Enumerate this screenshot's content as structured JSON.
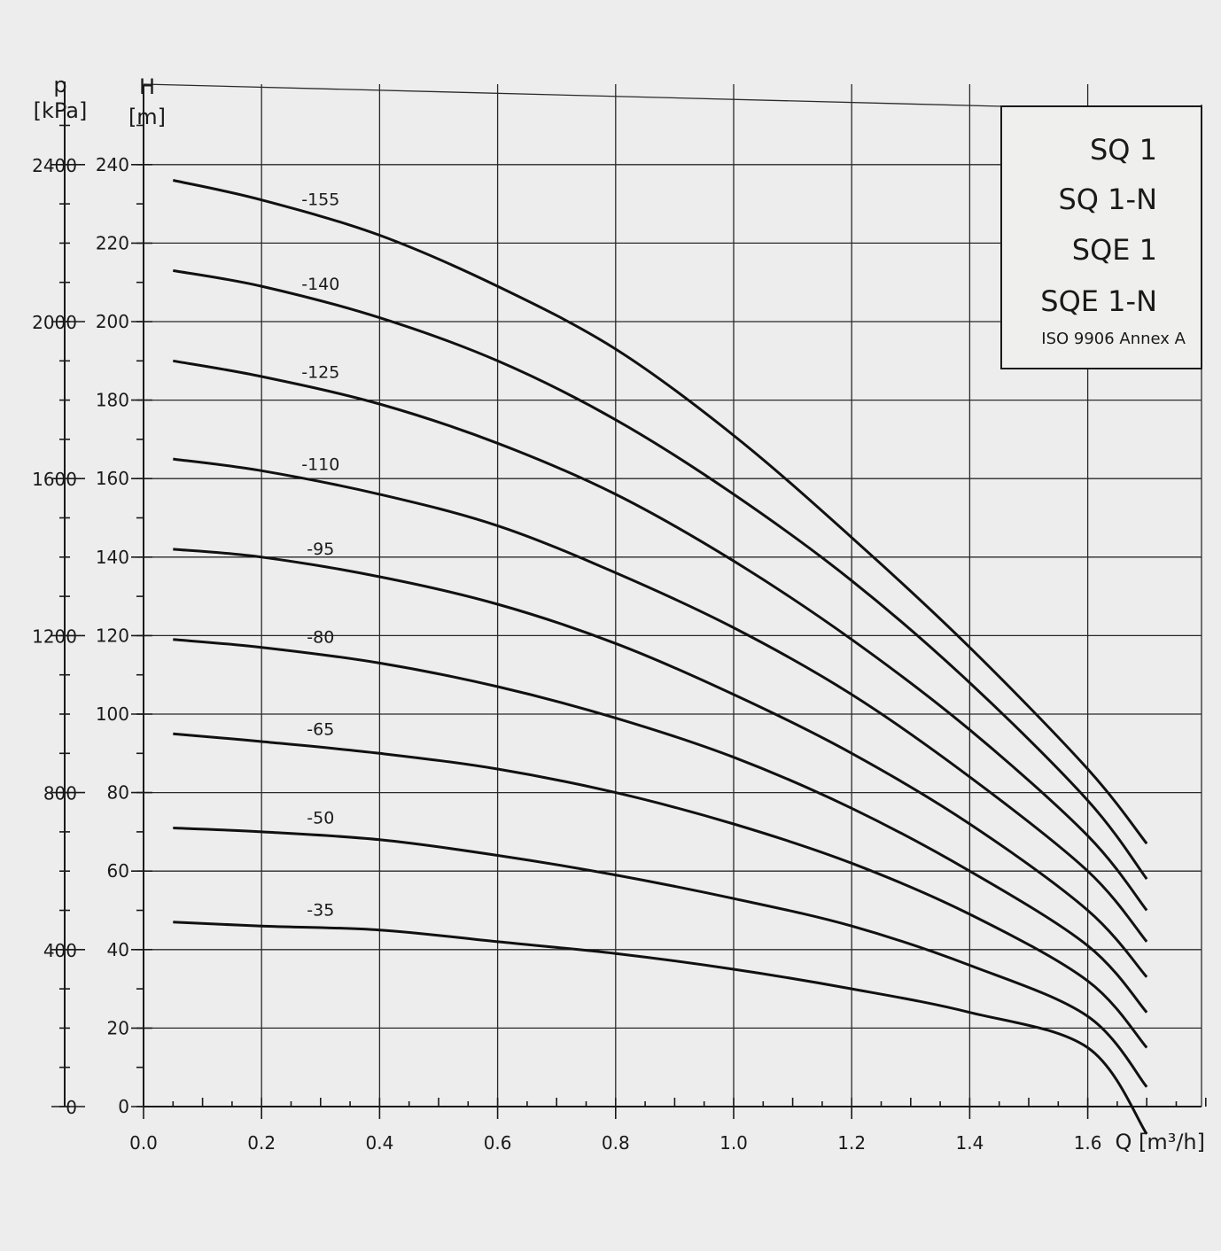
{
  "chart_data": {
    "type": "line",
    "x_axis": {
      "label": "Q [m³/h]",
      "min": 0.0,
      "max": 1.8,
      "tick_values": [
        0.0,
        0.2,
        0.4,
        0.6,
        0.8,
        1.0,
        1.2,
        1.4,
        1.6
      ],
      "tick_labels": [
        "0.0",
        "0.2",
        "0.4",
        "0.6",
        "0.8",
        "1.0",
        "1.2",
        "1.4",
        "1.6"
      ]
    },
    "y_axis_left": {
      "name": "H",
      "unit": "[m]",
      "min": 0,
      "max": 240,
      "tick_values": [
        0,
        20,
        40,
        60,
        80,
        100,
        120,
        140,
        160,
        180,
        200,
        220,
        240
      ],
      "tick_labels": [
        "0",
        "20",
        "40",
        "60",
        "80",
        "100",
        "120",
        "140",
        "160",
        "180",
        "200",
        "220",
        "240"
      ]
    },
    "y_axis_pressure": {
      "name": "p",
      "unit": "[kPa]",
      "min": 0,
      "max": 2400,
      "tick_values": [
        0,
        400,
        800,
        1200,
        1600,
        2000,
        2400
      ],
      "tick_labels": [
        "0",
        "400",
        "800",
        "1200",
        "1600",
        "2000",
        "2400"
      ]
    },
    "grid": true,
    "legend": {
      "lines": [
        "SQ 1",
        "SQ 1-N",
        "SQE 1",
        "SQE 1-N"
      ],
      "standard": "ISO 9906 Annex A",
      "placement": "top-right"
    },
    "series": [
      {
        "name": "-155",
        "x": [
          0.05,
          0.2,
          0.4,
          0.6,
          0.8,
          1.0,
          1.2,
          1.4,
          1.6,
          1.7
        ],
        "y": [
          236,
          231,
          222,
          209,
          193,
          171,
          145,
          117,
          86,
          67
        ]
      },
      {
        "name": "-140",
        "x": [
          0.05,
          0.2,
          0.4,
          0.6,
          0.8,
          1.0,
          1.2,
          1.4,
          1.6,
          1.7
        ],
        "y": [
          213,
          209,
          201,
          190,
          175,
          156,
          134,
          108,
          78,
          58
        ]
      },
      {
        "name": "-125",
        "x": [
          0.05,
          0.2,
          0.4,
          0.6,
          0.8,
          1.0,
          1.2,
          1.4,
          1.6,
          1.7
        ],
        "y": [
          190,
          186,
          179,
          169,
          156,
          139,
          119,
          96,
          69,
          50
        ]
      },
      {
        "name": "-110",
        "x": [
          0.05,
          0.2,
          0.4,
          0.6,
          0.8,
          1.0,
          1.2,
          1.4,
          1.6,
          1.7
        ],
        "y": [
          165,
          162,
          156,
          148,
          136,
          122,
          105,
          84,
          60,
          42
        ]
      },
      {
        "name": "-95",
        "x": [
          0.05,
          0.2,
          0.4,
          0.6,
          0.8,
          1.0,
          1.2,
          1.4,
          1.6,
          1.7
        ],
        "y": [
          142,
          140,
          135,
          128,
          118,
          105,
          90,
          72,
          50,
          33
        ]
      },
      {
        "name": "-80",
        "x": [
          0.05,
          0.2,
          0.4,
          0.6,
          0.8,
          1.0,
          1.2,
          1.4,
          1.6,
          1.7
        ],
        "y": [
          119,
          117,
          113,
          107,
          99,
          89,
          76,
          60,
          41,
          24
        ]
      },
      {
        "name": "-65",
        "x": [
          0.05,
          0.2,
          0.4,
          0.6,
          0.8,
          1.0,
          1.2,
          1.4,
          1.6,
          1.7
        ],
        "y": [
          95,
          93,
          90,
          86,
          80,
          72,
          62,
          49,
          32,
          15
        ]
      },
      {
        "name": "-50",
        "x": [
          0.05,
          0.2,
          0.4,
          0.6,
          0.8,
          1.0,
          1.2,
          1.4,
          1.6,
          1.7
        ],
        "y": [
          71,
          70,
          68,
          64,
          59,
          53,
          46,
          36,
          23,
          5
        ]
      },
      {
        "name": "-35",
        "x": [
          0.05,
          0.2,
          0.4,
          0.6,
          0.8,
          1.0,
          1.2,
          1.4,
          1.6,
          1.7
        ],
        "y": [
          47,
          46,
          45,
          42,
          39,
          35,
          30,
          24,
          15,
          -7
        ]
      }
    ]
  }
}
